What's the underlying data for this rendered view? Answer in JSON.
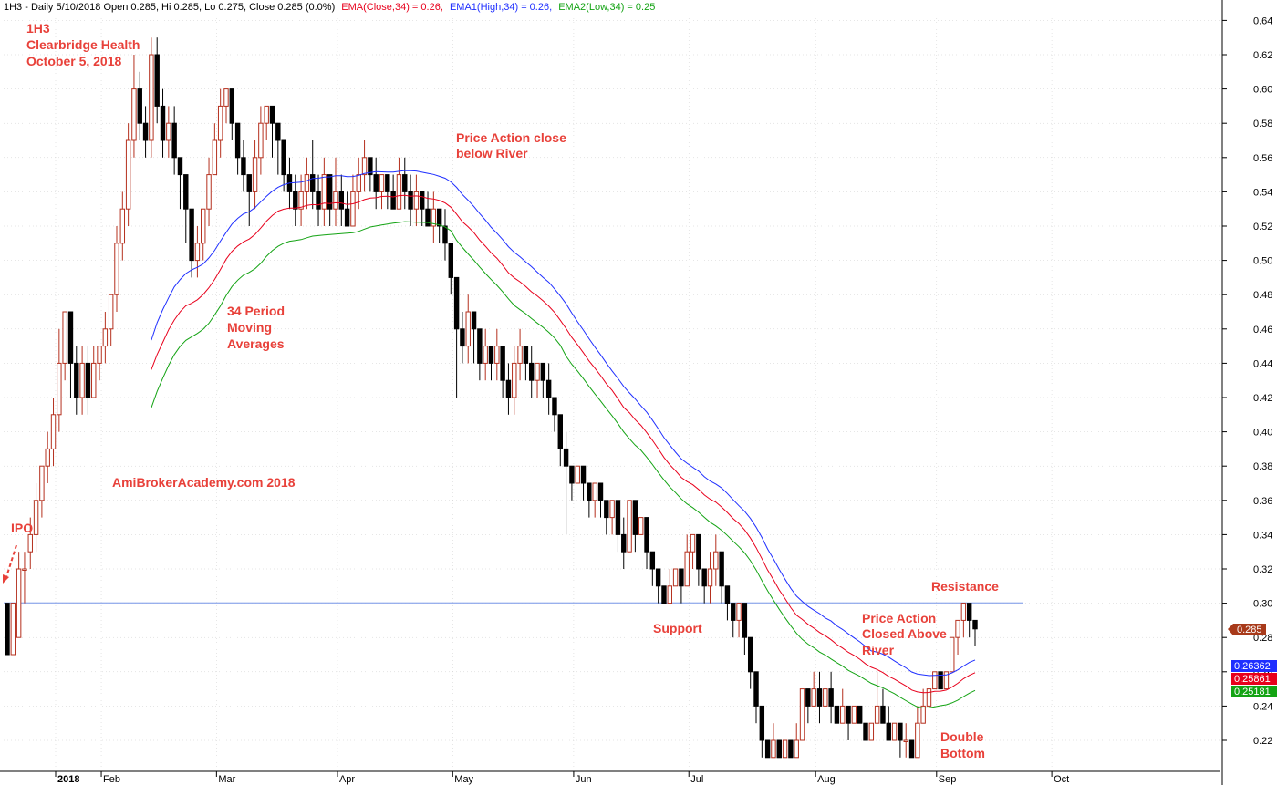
{
  "header": {
    "ticker_info": "1H3 - Daily 5/10/2018 Open 0.285, Hi 0.285, Lo 0.275, Close 0.285 (0.0%)",
    "ema_close": "EMA(Close,34) = 0.26,",
    "ema_high": "EMA1(High,34) = 0.26,",
    "ema_low": "EMA2(Low,34) = 0.25"
  },
  "annotations": {
    "title_ticker": "1H3",
    "title_name": "Clearbridge Health",
    "title_date": "October 5, 2018",
    "ipo": "IPO",
    "watermark": "AmiBrokerAcademy.com  2018",
    "ma_line1": "34 Period",
    "ma_line2": "Moving",
    "ma_line3": "Averages",
    "pa_below1": "Price Action close",
    "pa_below2": "below River",
    "support": "Support",
    "resistance": "Resistance",
    "pa_above1": "Price Action",
    "pa_above2": "Closed Above",
    "pa_above3": "River",
    "double1": "Double",
    "double2": "Bottom"
  },
  "colors": {
    "ema_close": "#e8001c",
    "ema_high": "#1f2fff",
    "ema_low": "#13a313",
    "annotation": "#e8413a",
    "level_line": "#8fa8ec",
    "bull_body": "#ffffff",
    "bull_border": "#b5301e",
    "bear_body": "#000000",
    "grid": "#cccccc"
  },
  "badges": {
    "last_close": "0.285",
    "ema_high_val": "0.26362",
    "ema_close_val": "0.25861",
    "ema_low_val": "0.25181"
  },
  "chart_data": {
    "type": "candlestick",
    "ylim": [
      0.205,
      0.645
    ],
    "y_ticks": [
      "0.22",
      "0.24",
      "0.26",
      "0.28",
      "0.30",
      "0.32",
      "0.34",
      "0.36",
      "0.38",
      "0.40",
      "0.42",
      "0.44",
      "0.46",
      "0.48",
      "0.50",
      "0.52",
      "0.54",
      "0.56",
      "0.58",
      "0.60",
      "0.62",
      "0.64"
    ],
    "x_ticks": [
      {
        "label": "2018",
        "day": 0
      },
      {
        "label": "Feb",
        "day": 16
      },
      {
        "label": "Mar",
        "day": 36
      },
      {
        "label": "Apr",
        "day": 57
      },
      {
        "label": "May",
        "day": 77
      },
      {
        "label": "Jun",
        "day": 98
      },
      {
        "label": "Jul",
        "day": 118
      },
      {
        "label": "Aug",
        "day": 140
      },
      {
        "label": "Sep",
        "day": 161
      },
      {
        "label": "Oct",
        "day": 181
      }
    ],
    "horizontal_level": 0.3,
    "candles": [
      [
        0.3,
        0.27,
        0.3,
        0.27
      ],
      [
        0.27,
        0.3,
        0.3,
        0.27
      ],
      [
        0.28,
        0.32,
        0.33,
        0.28
      ],
      [
        0.32,
        0.32,
        0.33,
        0.3
      ],
      [
        0.33,
        0.34,
        0.35,
        0.32
      ],
      [
        0.34,
        0.36,
        0.37,
        0.33
      ],
      [
        0.36,
        0.38,
        0.38,
        0.35
      ],
      [
        0.38,
        0.39,
        0.4,
        0.37
      ],
      [
        0.39,
        0.41,
        0.42,
        0.38
      ],
      [
        0.41,
        0.44,
        0.46,
        0.4
      ],
      [
        0.44,
        0.47,
        0.47,
        0.43
      ],
      [
        0.47,
        0.44,
        0.47,
        0.42
      ],
      [
        0.44,
        0.42,
        0.45,
        0.41
      ],
      [
        0.42,
        0.44,
        0.45,
        0.41
      ],
      [
        0.44,
        0.42,
        0.45,
        0.41
      ],
      [
        0.42,
        0.44,
        0.45,
        0.42
      ],
      [
        0.44,
        0.45,
        0.45,
        0.43
      ],
      [
        0.45,
        0.46,
        0.47,
        0.44
      ],
      [
        0.46,
        0.48,
        0.48,
        0.45
      ],
      [
        0.48,
        0.51,
        0.52,
        0.47
      ],
      [
        0.51,
        0.53,
        0.54,
        0.5
      ],
      [
        0.53,
        0.57,
        0.58,
        0.52
      ],
      [
        0.57,
        0.6,
        0.62,
        0.56
      ],
      [
        0.6,
        0.58,
        0.61,
        0.57
      ],
      [
        0.58,
        0.57,
        0.59,
        0.56
      ],
      [
        0.57,
        0.62,
        0.63,
        0.56
      ],
      [
        0.62,
        0.59,
        0.63,
        0.58
      ],
      [
        0.59,
        0.57,
        0.6,
        0.56
      ],
      [
        0.57,
        0.58,
        0.59,
        0.56
      ],
      [
        0.58,
        0.56,
        0.59,
        0.55
      ],
      [
        0.56,
        0.55,
        0.56,
        0.53
      ],
      [
        0.55,
        0.53,
        0.55,
        0.51
      ],
      [
        0.53,
        0.5,
        0.53,
        0.49
      ],
      [
        0.5,
        0.51,
        0.52,
        0.49
      ],
      [
        0.51,
        0.53,
        0.53,
        0.5
      ],
      [
        0.53,
        0.55,
        0.56,
        0.52
      ],
      [
        0.55,
        0.57,
        0.58,
        0.55
      ],
      [
        0.57,
        0.59,
        0.6,
        0.56
      ],
      [
        0.59,
        0.6,
        0.6,
        0.58
      ],
      [
        0.6,
        0.58,
        0.6,
        0.57
      ],
      [
        0.58,
        0.56,
        0.58,
        0.55
      ],
      [
        0.56,
        0.55,
        0.57,
        0.54
      ],
      [
        0.55,
        0.54,
        0.55,
        0.52
      ],
      [
        0.54,
        0.56,
        0.57,
        0.53
      ],
      [
        0.56,
        0.58,
        0.59,
        0.55
      ],
      [
        0.58,
        0.59,
        0.59,
        0.57
      ],
      [
        0.59,
        0.58,
        0.59,
        0.56
      ],
      [
        0.58,
        0.57,
        0.58,
        0.55
      ],
      [
        0.57,
        0.55,
        0.57,
        0.54
      ],
      [
        0.55,
        0.54,
        0.56,
        0.53
      ],
      [
        0.54,
        0.53,
        0.55,
        0.52
      ],
      [
        0.53,
        0.54,
        0.55,
        0.52
      ],
      [
        0.54,
        0.55,
        0.56,
        0.53
      ],
      [
        0.55,
        0.54,
        0.57,
        0.53
      ],
      [
        0.54,
        0.53,
        0.55,
        0.52
      ],
      [
        0.53,
        0.55,
        0.56,
        0.52
      ],
      [
        0.55,
        0.53,
        0.55,
        0.52
      ],
      [
        0.53,
        0.54,
        0.56,
        0.52
      ],
      [
        0.54,
        0.53,
        0.55,
        0.52
      ],
      [
        0.53,
        0.52,
        0.54,
        0.52
      ],
      [
        0.52,
        0.54,
        0.55,
        0.52
      ],
      [
        0.54,
        0.55,
        0.56,
        0.53
      ],
      [
        0.55,
        0.56,
        0.57,
        0.54
      ],
      [
        0.56,
        0.55,
        0.56,
        0.54
      ],
      [
        0.55,
        0.54,
        0.56,
        0.53
      ],
      [
        0.54,
        0.55,
        0.55,
        0.53
      ],
      [
        0.55,
        0.54,
        0.55,
        0.53
      ],
      [
        0.54,
        0.53,
        0.55,
        0.53
      ],
      [
        0.53,
        0.55,
        0.56,
        0.53
      ],
      [
        0.55,
        0.54,
        0.56,
        0.53
      ],
      [
        0.54,
        0.53,
        0.55,
        0.52
      ],
      [
        0.53,
        0.54,
        0.55,
        0.52
      ],
      [
        0.54,
        0.53,
        0.54,
        0.52
      ],
      [
        0.53,
        0.52,
        0.54,
        0.52
      ],
      [
        0.52,
        0.53,
        0.54,
        0.51
      ],
      [
        0.53,
        0.52,
        0.53,
        0.51
      ],
      [
        0.52,
        0.51,
        0.53,
        0.5
      ],
      [
        0.51,
        0.49,
        0.51,
        0.48
      ],
      [
        0.49,
        0.46,
        0.49,
        0.42
      ],
      [
        0.46,
        0.45,
        0.47,
        0.44
      ],
      [
        0.45,
        0.47,
        0.48,
        0.44
      ],
      [
        0.47,
        0.46,
        0.47,
        0.44
      ],
      [
        0.46,
        0.44,
        0.46,
        0.43
      ],
      [
        0.44,
        0.45,
        0.46,
        0.43
      ],
      [
        0.45,
        0.44,
        0.45,
        0.43
      ],
      [
        0.44,
        0.45,
        0.46,
        0.43
      ],
      [
        0.45,
        0.43,
        0.45,
        0.42
      ],
      [
        0.43,
        0.42,
        0.44,
        0.41
      ],
      [
        0.42,
        0.44,
        0.45,
        0.41
      ],
      [
        0.44,
        0.45,
        0.46,
        0.43
      ],
      [
        0.45,
        0.44,
        0.45,
        0.43
      ],
      [
        0.44,
        0.43,
        0.45,
        0.42
      ],
      [
        0.43,
        0.44,
        0.44,
        0.42
      ],
      [
        0.44,
        0.43,
        0.44,
        0.42
      ],
      [
        0.43,
        0.42,
        0.44,
        0.41
      ],
      [
        0.42,
        0.41,
        0.42,
        0.4
      ],
      [
        0.41,
        0.39,
        0.41,
        0.38
      ],
      [
        0.39,
        0.38,
        0.4,
        0.34
      ],
      [
        0.38,
        0.37,
        0.38,
        0.36
      ],
      [
        0.37,
        0.38,
        0.38,
        0.37
      ],
      [
        0.38,
        0.37,
        0.38,
        0.36
      ],
      [
        0.37,
        0.36,
        0.37,
        0.35
      ],
      [
        0.36,
        0.37,
        0.37,
        0.35
      ],
      [
        0.37,
        0.36,
        0.37,
        0.35
      ],
      [
        0.36,
        0.35,
        0.36,
        0.34
      ],
      [
        0.35,
        0.36,
        0.36,
        0.34
      ],
      [
        0.36,
        0.34,
        0.36,
        0.33
      ],
      [
        0.34,
        0.33,
        0.35,
        0.32
      ],
      [
        0.33,
        0.36,
        0.36,
        0.33
      ],
      [
        0.36,
        0.34,
        0.36,
        0.33
      ],
      [
        0.34,
        0.35,
        0.35,
        0.34
      ],
      [
        0.35,
        0.33,
        0.35,
        0.32
      ],
      [
        0.33,
        0.32,
        0.33,
        0.31
      ],
      [
        0.32,
        0.31,
        0.32,
        0.3
      ],
      [
        0.31,
        0.3,
        0.31,
        0.3
      ],
      [
        0.3,
        0.31,
        0.32,
        0.3
      ],
      [
        0.31,
        0.32,
        0.32,
        0.31
      ],
      [
        0.32,
        0.31,
        0.32,
        0.3
      ],
      [
        0.31,
        0.33,
        0.34,
        0.31
      ],
      [
        0.33,
        0.34,
        0.34,
        0.32
      ],
      [
        0.34,
        0.32,
        0.34,
        0.31
      ],
      [
        0.32,
        0.31,
        0.32,
        0.3
      ],
      [
        0.31,
        0.32,
        0.33,
        0.3
      ],
      [
        0.32,
        0.33,
        0.34,
        0.31
      ],
      [
        0.33,
        0.31,
        0.33,
        0.3
      ],
      [
        0.31,
        0.3,
        0.31,
        0.29
      ],
      [
        0.3,
        0.29,
        0.3,
        0.28
      ],
      [
        0.29,
        0.3,
        0.3,
        0.28
      ],
      [
        0.3,
        0.28,
        0.3,
        0.27
      ],
      [
        0.28,
        0.26,
        0.28,
        0.25
      ],
      [
        0.26,
        0.24,
        0.26,
        0.23
      ],
      [
        0.24,
        0.22,
        0.24,
        0.21
      ],
      [
        0.22,
        0.21,
        0.22,
        0.21
      ],
      [
        0.21,
        0.22,
        0.23,
        0.21
      ],
      [
        0.22,
        0.21,
        0.22,
        0.21
      ],
      [
        0.21,
        0.22,
        0.22,
        0.21
      ],
      [
        0.22,
        0.21,
        0.22,
        0.21
      ],
      [
        0.21,
        0.22,
        0.23,
        0.21
      ],
      [
        0.22,
        0.25,
        0.25,
        0.22
      ],
      [
        0.25,
        0.24,
        0.25,
        0.23
      ],
      [
        0.24,
        0.25,
        0.26,
        0.24
      ],
      [
        0.25,
        0.24,
        0.26,
        0.23
      ],
      [
        0.24,
        0.25,
        0.25,
        0.24
      ],
      [
        0.25,
        0.24,
        0.26,
        0.23
      ],
      [
        0.24,
        0.23,
        0.24,
        0.23
      ],
      [
        0.23,
        0.24,
        0.25,
        0.23
      ],
      [
        0.24,
        0.23,
        0.24,
        0.22
      ],
      [
        0.23,
        0.24,
        0.24,
        0.23
      ],
      [
        0.24,
        0.23,
        0.24,
        0.23
      ],
      [
        0.23,
        0.22,
        0.23,
        0.22
      ],
      [
        0.22,
        0.23,
        0.23,
        0.22
      ],
      [
        0.23,
        0.24,
        0.26,
        0.23
      ],
      [
        0.24,
        0.23,
        0.25,
        0.23
      ],
      [
        0.23,
        0.22,
        0.24,
        0.22
      ],
      [
        0.22,
        0.23,
        0.23,
        0.22
      ],
      [
        0.23,
        0.22,
        0.23,
        0.21
      ],
      [
        0.22,
        0.22,
        0.23,
        0.21
      ],
      [
        0.22,
        0.21,
        0.22,
        0.21
      ],
      [
        0.21,
        0.23,
        0.24,
        0.21
      ],
      [
        0.23,
        0.24,
        0.25,
        0.23
      ],
      [
        0.24,
        0.25,
        0.25,
        0.24
      ],
      [
        0.25,
        0.26,
        0.26,
        0.25
      ],
      [
        0.26,
        0.25,
        0.26,
        0.25
      ],
      [
        0.25,
        0.26,
        0.26,
        0.25
      ],
      [
        0.26,
        0.28,
        0.28,
        0.26
      ],
      [
        0.28,
        0.29,
        0.29,
        0.27
      ],
      [
        0.29,
        0.3,
        0.3,
        0.28
      ],
      [
        0.3,
        0.29,
        0.3,
        0.28
      ],
      [
        0.29,
        0.285,
        0.29,
        0.275
      ]
    ]
  }
}
